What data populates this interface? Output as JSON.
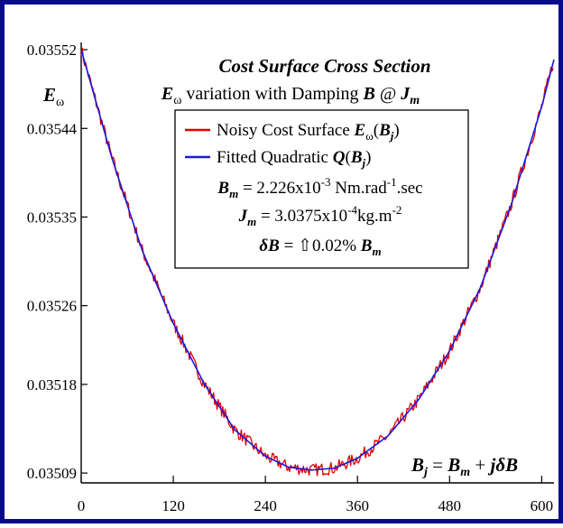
{
  "colors": {
    "frame": "#0a0a8c",
    "noisy": "#e00000",
    "fit": "#1a1adc",
    "axis": "#000000",
    "background": "#ffffff"
  },
  "chart_data": {
    "type": "line",
    "title": "Cost Surface Cross Section",
    "subtitle": {
      "symbol": "E",
      "subscript": "ω",
      "text": " variation with Damping ",
      "b": "B",
      "at": " @ ",
      "j": "J",
      "j_sub": "m"
    },
    "ylabel": {
      "symbol": "E",
      "subscript": "ω"
    },
    "xlim": [
      0,
      616
    ],
    "ylim": [
      0.03508,
      0.03552
    ],
    "x_ticks": [
      "0",
      "120",
      "240",
      "360",
      "480",
      "600"
    ],
    "x_tick_values": [
      0,
      120,
      240,
      360,
      480,
      600
    ],
    "y_ticks": [
      "0.03552",
      "0.03544",
      "0.03535",
      "0.03526",
      "0.03518",
      "0.03509"
    ],
    "y_tick_values": [
      0.03552,
      0.03544,
      0.03535,
      0.03526,
      0.03518,
      0.03509
    ],
    "legend_position": "top-center",
    "series": [
      {
        "name": "Noisy Cost Surface Eω(Bj)",
        "legend": {
          "text": "Noisy Cost Surface ",
          "symbol": "E",
          "subscript": "ω",
          "arg_open": "(",
          "arg": "B",
          "arg_sub": "j",
          "arg_close": ")"
        },
        "noise_amplitude": 6.5e-06,
        "points": [
          [
            0,
            0.03552
          ],
          [
            40,
            0.03541
          ],
          [
            80,
            0.035315
          ],
          [
            120,
            0.035242
          ],
          [
            160,
            0.035181
          ],
          [
            200,
            0.035134
          ],
          [
            240,
            0.035107
          ],
          [
            270,
            0.035096
          ],
          [
            300,
            0.035093
          ],
          [
            330,
            0.035095
          ],
          [
            360,
            0.035105
          ],
          [
            400,
            0.035128
          ],
          [
            440,
            0.035165
          ],
          [
            480,
            0.035214
          ],
          [
            520,
            0.035278
          ],
          [
            560,
            0.035362
          ],
          [
            600,
            0.035462
          ],
          [
            616,
            0.03551
          ]
        ]
      },
      {
        "name": "Fitted Quadratic Q(Bj)",
        "legend": {
          "text": "Fitted Quadratic ",
          "symbol": "Q",
          "arg_open": "(",
          "arg": "B",
          "arg_sub": "j",
          "arg_close": ")"
        },
        "points": [
          [
            0,
            0.03552
          ],
          [
            40,
            0.03541
          ],
          [
            80,
            0.035315
          ],
          [
            120,
            0.035242
          ],
          [
            160,
            0.035181
          ],
          [
            200,
            0.035134
          ],
          [
            240,
            0.035107
          ],
          [
            270,
            0.035096
          ],
          [
            300,
            0.035093
          ],
          [
            330,
            0.035095
          ],
          [
            360,
            0.035105
          ],
          [
            400,
            0.035128
          ],
          [
            440,
            0.035165
          ],
          [
            480,
            0.035214
          ],
          [
            520,
            0.035278
          ],
          [
            560,
            0.035362
          ],
          [
            600,
            0.035462
          ],
          [
            616,
            0.03551
          ]
        ]
      }
    ],
    "annotations": {
      "bm": {
        "sym": "B",
        "sub": "m",
        "eq": " = 2.226x10",
        "exp1": "-3",
        "mid": " Nm.rad",
        "exp2": "-1",
        "tail": ".sec"
      },
      "jm": {
        "sym": "J",
        "sub": "m",
        "eq": " = 3.0375x10",
        "exp1": "-4",
        "tail": "kg.m",
        "exp2": "-2"
      },
      "db": {
        "delta": "δ",
        "sym": "B",
        "eq": " = ",
        "arrow": "⇧",
        "pct": "0.02% ",
        "bsym": "B",
        "bsub": "m"
      },
      "formula": {
        "b": "B",
        "j": "j",
        "eq": " = ",
        "bm": "B",
        "m": "m",
        "plus": " + ",
        "j2": "j",
        "delta": "δ",
        "b2": "B"
      }
    }
  }
}
